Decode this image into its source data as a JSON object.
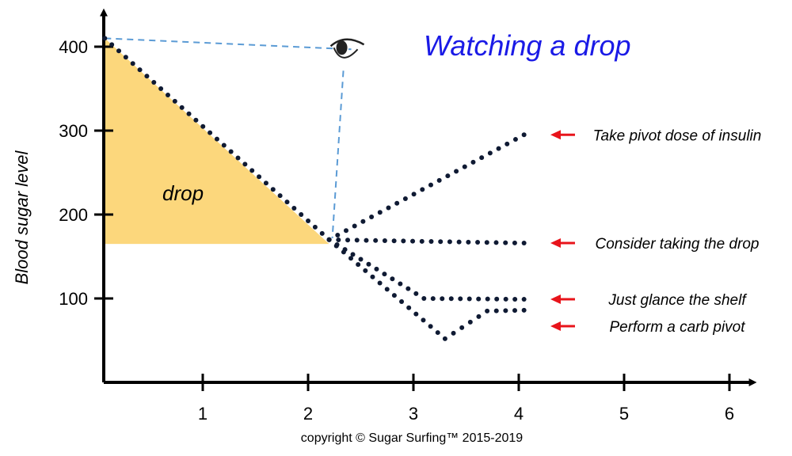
{
  "colors": {
    "title": "#1a1ae6",
    "fill": "#fcd77c",
    "dots": "#0f1a33",
    "sightline": "#5b9bd5",
    "arrow": "#e8141b",
    "axis": "#000000"
  },
  "chart_data": {
    "type": "scatter",
    "title": "Watching a drop",
    "xlabel": "",
    "ylabel": "Blood sugar level",
    "xlim": [
      0,
      6.2
    ],
    "ylim": [
      0,
      440
    ],
    "x_ticks": [
      1,
      2,
      3,
      4,
      5,
      6
    ],
    "x_tick_labels": [
      "1",
      "2",
      "3",
      "4",
      "5",
      "6"
    ],
    "y_ticks": [
      100,
      200,
      300,
      400
    ],
    "y_tick_labels": [
      "100",
      "200",
      "300",
      "400"
    ],
    "grid": false,
    "drop_region": {
      "label": "drop",
      "vertices": [
        [
          0.07,
          410
        ],
        [
          2.2,
          165
        ],
        [
          0.07,
          165
        ]
      ]
    },
    "eye": {
      "icon": "eye-icon",
      "x": 2.35,
      "y": 395
    },
    "series": [
      {
        "points": [
          [
            0.07,
            410
          ],
          [
            2.2,
            170
          ]
        ]
      },
      {
        "points": [
          [
            2.2,
            170
          ],
          [
            4.05,
            295
          ]
        ]
      },
      {
        "points": [
          [
            2.2,
            170
          ],
          [
            4.05,
            166
          ]
        ]
      },
      {
        "points": [
          [
            2.2,
            170
          ],
          [
            3.1,
            100
          ],
          [
            4.05,
            99
          ]
        ]
      },
      {
        "points": [
          [
            2.2,
            170
          ],
          [
            3.3,
            52
          ],
          [
            3.7,
            85
          ],
          [
            4.05,
            86
          ]
        ]
      }
    ],
    "annotations": [
      {
        "text": "Take pivot dose of insulin",
        "y": 295
      },
      {
        "text": "Consider taking the drop",
        "y": 166
      },
      {
        "text": "Just glance the shelf",
        "y": 99
      },
      {
        "text": "Perform a carb pivot",
        "y": 67
      }
    ]
  },
  "copyright": "copyright © Sugar Surfing™ 2015-2019"
}
